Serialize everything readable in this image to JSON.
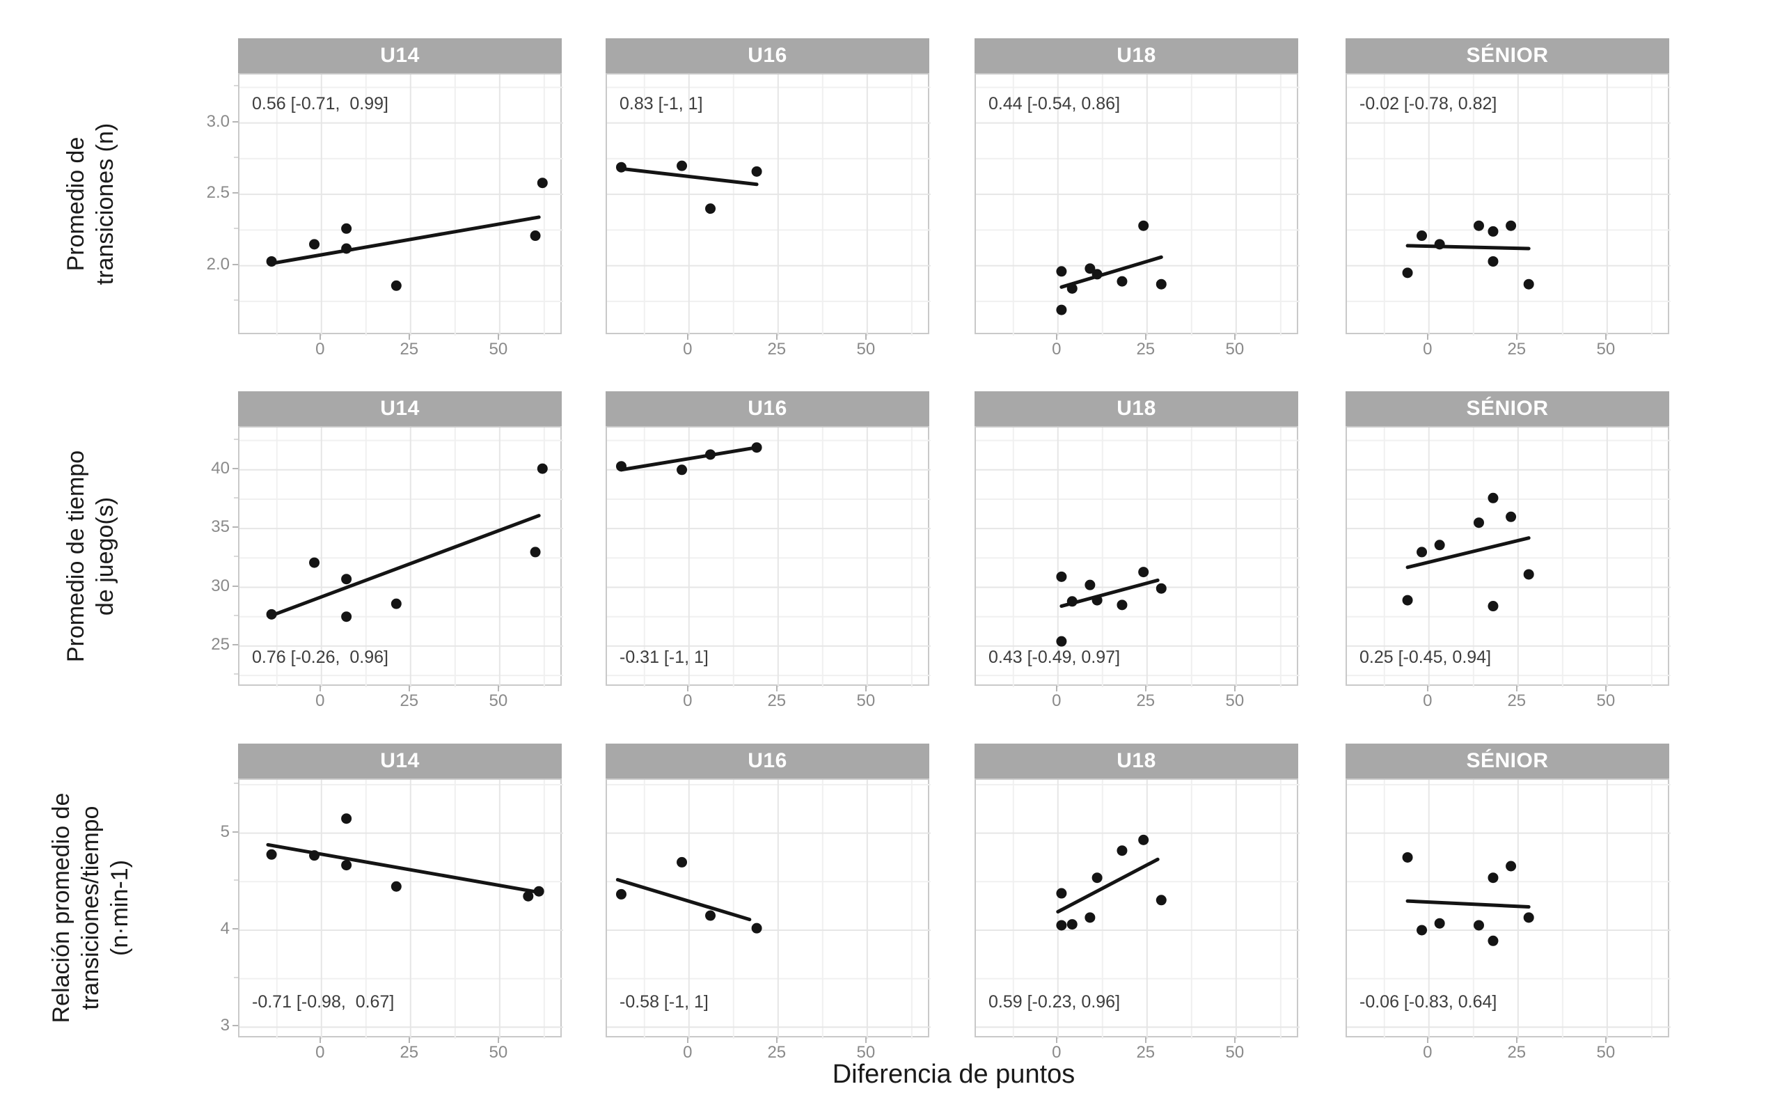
{
  "figure": {
    "xlabel": "Diferencia de puntos",
    "columns": [
      "U14",
      "U16",
      "U18",
      "SÉNIOR"
    ],
    "x_ticks": [
      0,
      25,
      50
    ],
    "x_minor_ticks": [
      -12.5,
      12.5,
      37.5,
      62.5
    ],
    "x_domain": [
      -23,
      67.8
    ],
    "colors": {
      "strip_bg": "#a8a8a8",
      "strip_text": "#ffffff",
      "point": "#141414",
      "trend": "#141414",
      "grid_major": "#e6e6e6",
      "grid_minor": "#f0f0f0",
      "panel_border": "#c9c9c9",
      "tick_label": "#8a8a8a",
      "annotation": "#3d3d3d",
      "axis_label": "#1a1a1a"
    }
  },
  "chart_data": [
    {
      "type": "scatter",
      "row": 1,
      "ylabel": "Promedio de\ntransiciones (n)",
      "xlabel": "Diferencia de puntos",
      "y_domain": [
        1.51,
        3.34
      ],
      "y_ticks": [
        {
          "value": 3.0,
          "label": "3.0"
        },
        {
          "value": 2.5,
          "label": "2.5"
        },
        {
          "value": 2.0,
          "label": "2.0"
        }
      ],
      "y_minor": [
        3.25,
        2.75,
        2.25,
        1.75
      ],
      "grid": true,
      "legend": false,
      "panels": [
        {
          "category": "U14",
          "annotation": "0.56 [-0.71,  0.99]",
          "annotation_pos": "top",
          "points": [
            [
              -14,
              2.03
            ],
            [
              -2,
              2.15
            ],
            [
              7,
              2.26
            ],
            [
              7,
              2.12
            ],
            [
              21,
              1.86
            ],
            [
              60,
              2.21
            ],
            [
              62,
              2.58
            ]
          ],
          "trend": [
            [
              -13,
              2.02
            ],
            [
              61,
              2.34
            ]
          ]
        },
        {
          "category": "U16",
          "annotation": "0.83 [-1, 1]",
          "annotation_pos": "top",
          "points": [
            [
              -19,
              2.69
            ],
            [
              -2,
              2.7
            ],
            [
              6,
              2.4
            ],
            [
              19,
              2.66
            ]
          ],
          "trend": [
            [
              -19,
              2.68
            ],
            [
              19,
              2.57
            ]
          ]
        },
        {
          "category": "U18",
          "annotation": "0.44 [-0.54, 0.86]",
          "annotation_pos": "top",
          "points": [
            [
              1,
              1.96
            ],
            [
              1,
              1.69
            ],
            [
              4,
              1.84
            ],
            [
              9,
              1.98
            ],
            [
              11,
              1.94
            ],
            [
              18,
              1.89
            ],
            [
              24,
              2.28
            ],
            [
              29,
              1.87
            ]
          ],
          "trend": [
            [
              1,
              1.85
            ],
            [
              29,
              2.06
            ]
          ]
        },
        {
          "category": "SÉNIOR",
          "annotation": "-0.02 [-0.78, 0.82]",
          "annotation_pos": "top",
          "points": [
            [
              -6,
              1.95
            ],
            [
              -2,
              2.21
            ],
            [
              3,
              2.15
            ],
            [
              14,
              2.28
            ],
            [
              18,
              2.24
            ],
            [
              18,
              2.03
            ],
            [
              23,
              2.28
            ],
            [
              28,
              1.87
            ]
          ],
          "trend": [
            [
              -6,
              2.14
            ],
            [
              28,
              2.12
            ]
          ]
        }
      ]
    },
    {
      "type": "scatter",
      "row": 2,
      "ylabel": "Promedio de tiempo\nde juego(s)",
      "xlabel": "Diferencia de puntos",
      "y_domain": [
        21.5,
        43.6
      ],
      "y_ticks": [
        {
          "value": 40,
          "label": "40"
        },
        {
          "value": 35,
          "label": "35"
        },
        {
          "value": 30,
          "label": "30"
        },
        {
          "value": 25,
          "label": "25"
        }
      ],
      "y_minor": [
        42.5,
        37.5,
        32.5,
        27.5,
        22.5
      ],
      "grid": true,
      "legend": false,
      "panels": [
        {
          "category": "U14",
          "annotation": "0.76 [-0.26,  0.96]",
          "annotation_pos": "bottom",
          "points": [
            [
              -14,
              27.7
            ],
            [
              -2,
              32.1
            ],
            [
              7,
              30.7
            ],
            [
              7,
              27.5
            ],
            [
              21,
              28.6
            ],
            [
              60,
              33.0
            ],
            [
              62,
              40.1
            ]
          ],
          "trend": [
            [
              -14,
              27.6
            ],
            [
              61,
              36.1
            ]
          ]
        },
        {
          "category": "U16",
          "annotation": "-0.31 [-1, 1]",
          "annotation_pos": "bottom",
          "points": [
            [
              -19,
              40.3
            ],
            [
              -2,
              40.0
            ],
            [
              6,
              41.3
            ],
            [
              19,
              41.9
            ]
          ],
          "trend": [
            [
              -19,
              40.0
            ],
            [
              19,
              41.9
            ]
          ]
        },
        {
          "category": "U18",
          "annotation": "0.43 [-0.49, 0.97]",
          "annotation_pos": "bottom",
          "points": [
            [
              1,
              30.9
            ],
            [
              1,
              25.4
            ],
            [
              4,
              28.8
            ],
            [
              9,
              30.2
            ],
            [
              11,
              28.9
            ],
            [
              18,
              28.5
            ],
            [
              24,
              31.3
            ],
            [
              29,
              29.9
            ]
          ],
          "trend": [
            [
              1,
              28.4
            ],
            [
              28,
              30.6
            ]
          ]
        },
        {
          "category": "SÉNIOR",
          "annotation": "0.25 [-0.45, 0.94]",
          "annotation_pos": "bottom",
          "points": [
            [
              -6,
              28.9
            ],
            [
              -2,
              33.0
            ],
            [
              3,
              33.6
            ],
            [
              14,
              35.5
            ],
            [
              18,
              37.6
            ],
            [
              18,
              28.4
            ],
            [
              23,
              36.0
            ],
            [
              28,
              31.1
            ]
          ],
          "trend": [
            [
              -6,
              31.7
            ],
            [
              28,
              34.2
            ]
          ]
        }
      ]
    },
    {
      "type": "scatter",
      "row": 3,
      "ylabel": "Relación promedio de\ntransiciones/tiempo\n(n·min-1)",
      "xlabel": "Diferencia de puntos",
      "y_domain": [
        2.88,
        5.55
      ],
      "y_ticks": [
        {
          "value": 5,
          "label": "5"
        },
        {
          "value": 4,
          "label": "4"
        },
        {
          "value": 3,
          "label": "3"
        }
      ],
      "y_minor": [
        5.5,
        4.5,
        3.5
      ],
      "grid": true,
      "legend": false,
      "panels": [
        {
          "category": "U14",
          "annotation": "-0.71 [-0.98,  0.67]",
          "annotation_pos": "bottom",
          "points": [
            [
              -14,
              4.78
            ],
            [
              -2,
              4.77
            ],
            [
              7,
              5.15
            ],
            [
              7,
              4.67
            ],
            [
              21,
              4.45
            ],
            [
              58,
              4.35
            ],
            [
              61,
              4.4
            ]
          ],
          "trend": [
            [
              -15,
              4.88
            ],
            [
              61,
              4.39
            ]
          ]
        },
        {
          "category": "U16",
          "annotation": "-0.58 [-1, 1]",
          "annotation_pos": "bottom",
          "points": [
            [
              -19,
              4.37
            ],
            [
              -2,
              4.7
            ],
            [
              6,
              4.15
            ],
            [
              19,
              4.02
            ]
          ],
          "trend": [
            [
              -20,
              4.52
            ],
            [
              17,
              4.11
            ]
          ]
        },
        {
          "category": "U18",
          "annotation": "0.59 [-0.23, 0.96]",
          "annotation_pos": "bottom",
          "points": [
            [
              1,
              4.38
            ],
            [
              1,
              4.05
            ],
            [
              4,
              4.06
            ],
            [
              9,
              4.13
            ],
            [
              11,
              4.54
            ],
            [
              18,
              4.82
            ],
            [
              24,
              4.93
            ],
            [
              29,
              4.31
            ]
          ],
          "trend": [
            [
              0,
              4.19
            ],
            [
              28,
              4.73
            ]
          ]
        },
        {
          "category": "SÉNIOR",
          "annotation": "-0.06 [-0.83, 0.64]",
          "annotation_pos": "bottom",
          "points": [
            [
              -6,
              4.75
            ],
            [
              -2,
              4.0
            ],
            [
              3,
              4.07
            ],
            [
              14,
              4.05
            ],
            [
              18,
              4.54
            ],
            [
              18,
              3.89
            ],
            [
              23,
              4.66
            ],
            [
              28,
              4.13
            ]
          ],
          "trend": [
            [
              -6,
              4.3
            ],
            [
              28,
              4.24
            ]
          ]
        }
      ]
    }
  ]
}
